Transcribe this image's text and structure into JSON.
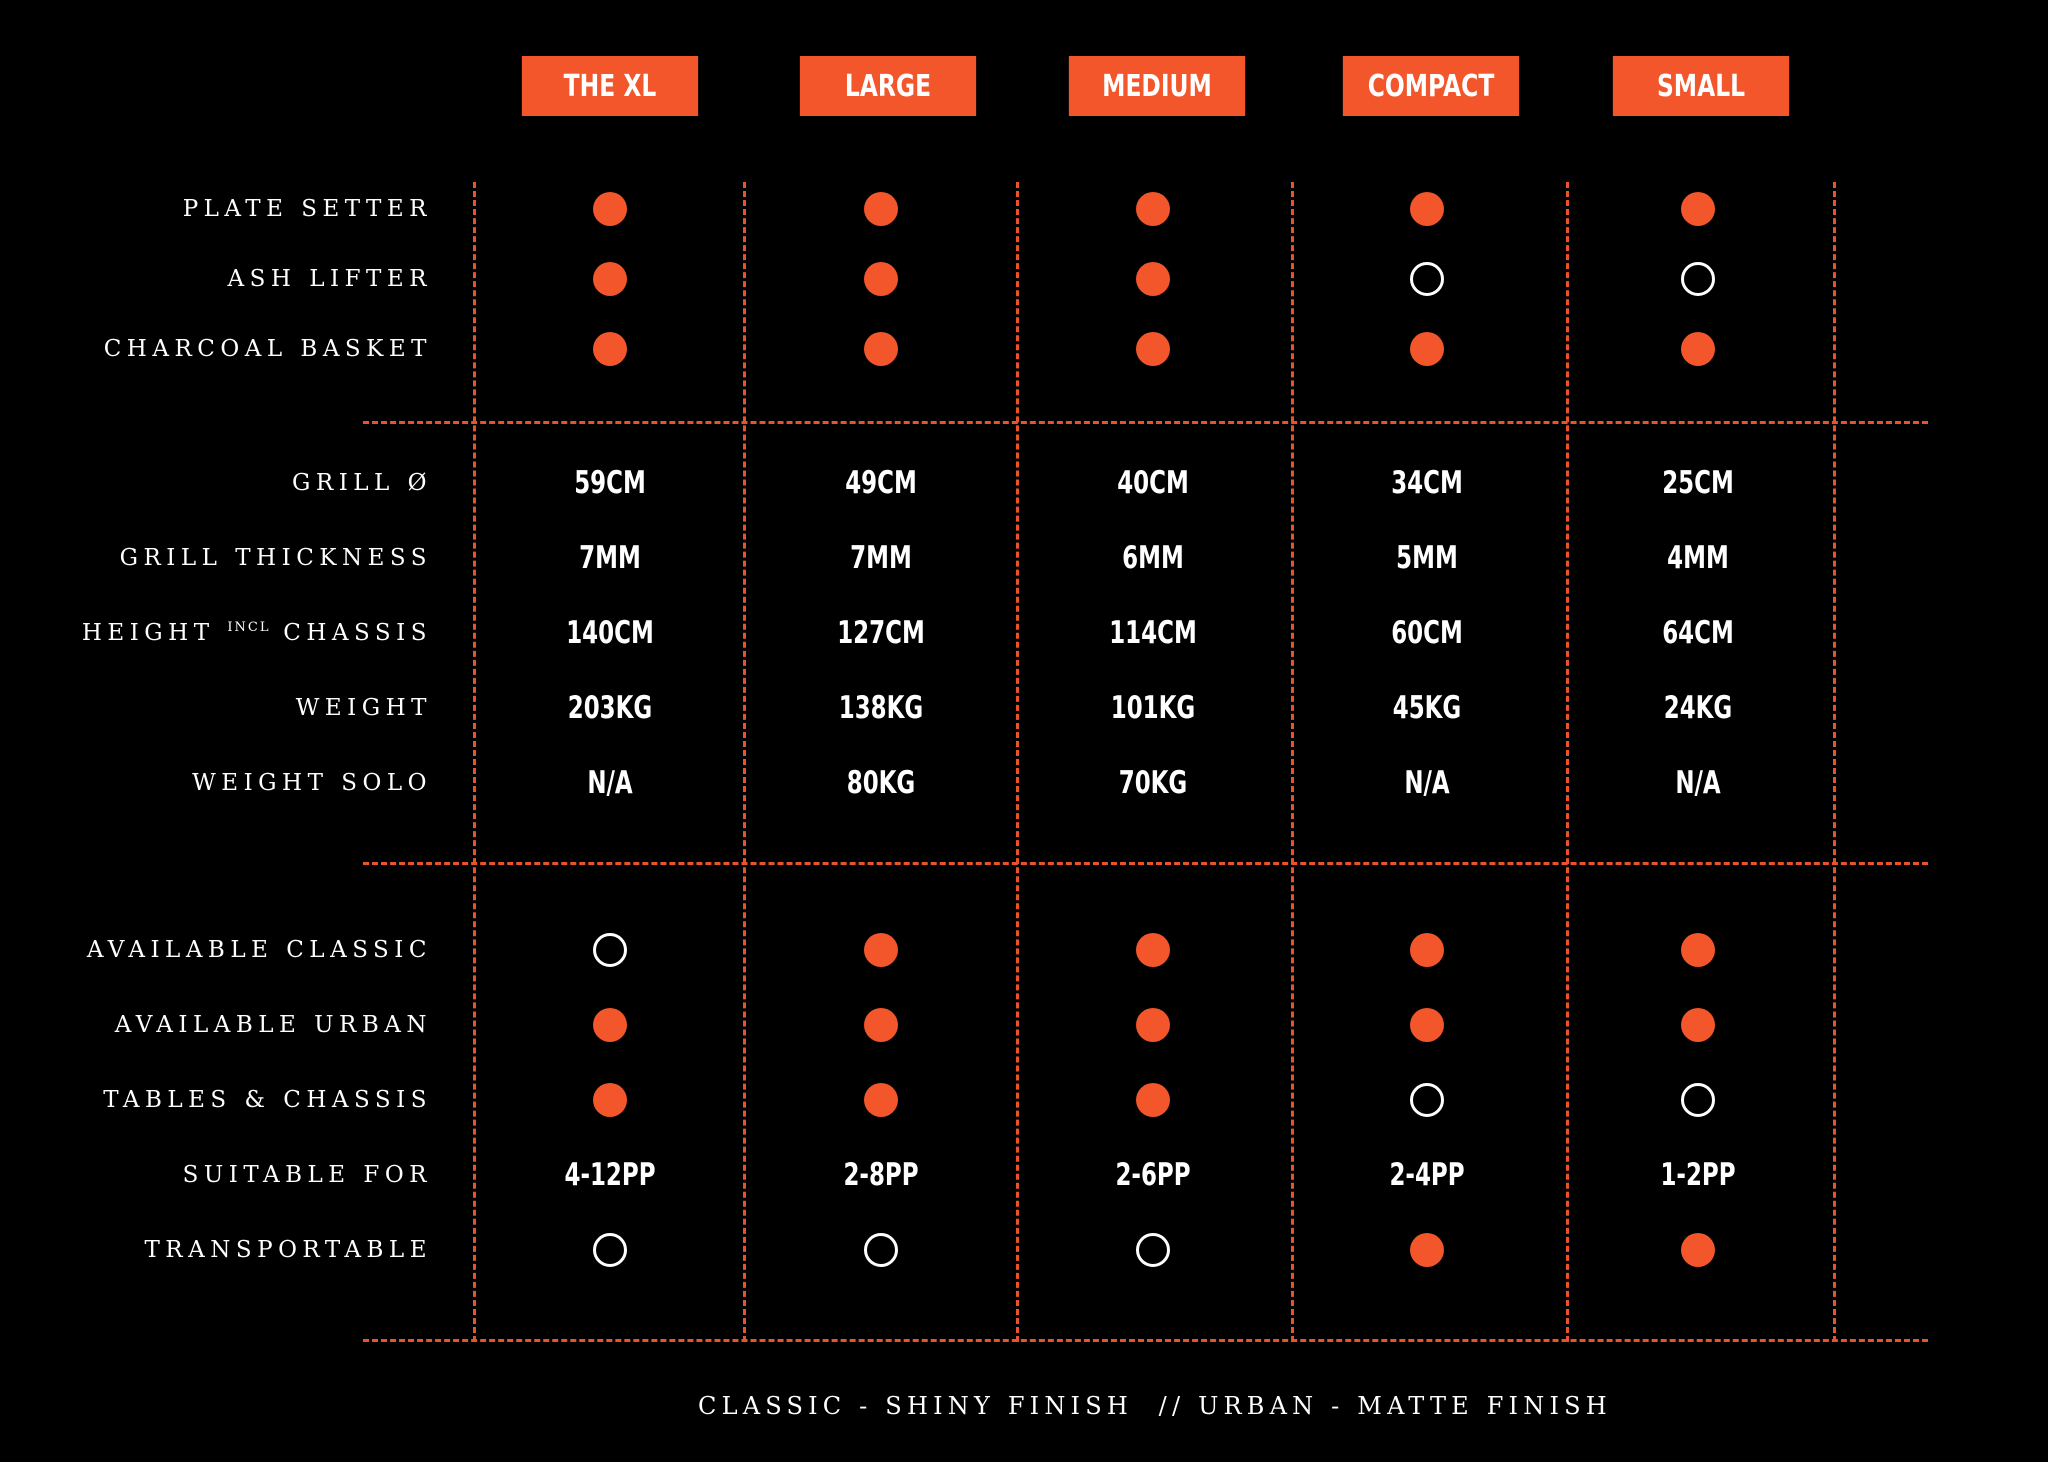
{
  "columns": [
    "THE XL",
    "LARGE",
    "MEDIUM",
    "COMPACT",
    "SMALL"
  ],
  "colors": {
    "accent": "#f2562a",
    "background": "#000000",
    "text": "#ffffff"
  },
  "sections": [
    {
      "rows": [
        {
          "label": "PLATE SETTER",
          "type": "dots",
          "values": [
            true,
            true,
            true,
            true,
            true
          ]
        },
        {
          "label": "ASH LIFTER",
          "type": "dots",
          "values": [
            true,
            true,
            true,
            false,
            false
          ]
        },
        {
          "label": "CHARCOAL BASKET",
          "type": "dots",
          "values": [
            true,
            true,
            true,
            true,
            true
          ]
        }
      ]
    },
    {
      "rows": [
        {
          "label": "GRILL Ø",
          "type": "text",
          "values": [
            "59CM",
            "49CM",
            "40CM",
            "34CM",
            "25CM"
          ]
        },
        {
          "label": "GRILL THICKNESS",
          "type": "text",
          "values": [
            "7MM",
            "7MM",
            "6MM",
            "5MM",
            "4MM"
          ]
        },
        {
          "label_pre": "HEIGHT",
          "label_sup": "INCL",
          "label_post": "CHASSIS",
          "type": "text",
          "values": [
            "140CM",
            "127CM",
            "114CM",
            "60CM",
            "64CM"
          ]
        },
        {
          "label": "WEIGHT",
          "type": "text",
          "values": [
            "203KG",
            "138KG",
            "101KG",
            "45KG",
            "24KG"
          ]
        },
        {
          "label": "WEIGHT SOLO",
          "type": "text",
          "values": [
            "N/A",
            "80KG",
            "70KG",
            "N/A",
            "N/A"
          ]
        }
      ]
    },
    {
      "rows": [
        {
          "label": "AVAILABLE CLASSIC",
          "type": "dots",
          "values": [
            false,
            true,
            true,
            true,
            true
          ]
        },
        {
          "label": "AVAILABLE URBAN",
          "type": "dots",
          "values": [
            true,
            true,
            true,
            true,
            true
          ]
        },
        {
          "label": "TABLES & CHASSIS",
          "type": "dots",
          "values": [
            true,
            true,
            true,
            false,
            false
          ]
        },
        {
          "label": "SUITABLE FOR",
          "type": "text",
          "values": [
            "4-12PP",
            "2-8PP",
            "2-6PP",
            "2-4PP",
            "1-2PP"
          ]
        },
        {
          "label": "TRANSPORTABLE",
          "type": "dots",
          "values": [
            false,
            false,
            false,
            true,
            true
          ]
        }
      ]
    }
  ],
  "footer": "CLASSIC - SHINY FINISH  // URBAN - MATTE FINISH"
}
